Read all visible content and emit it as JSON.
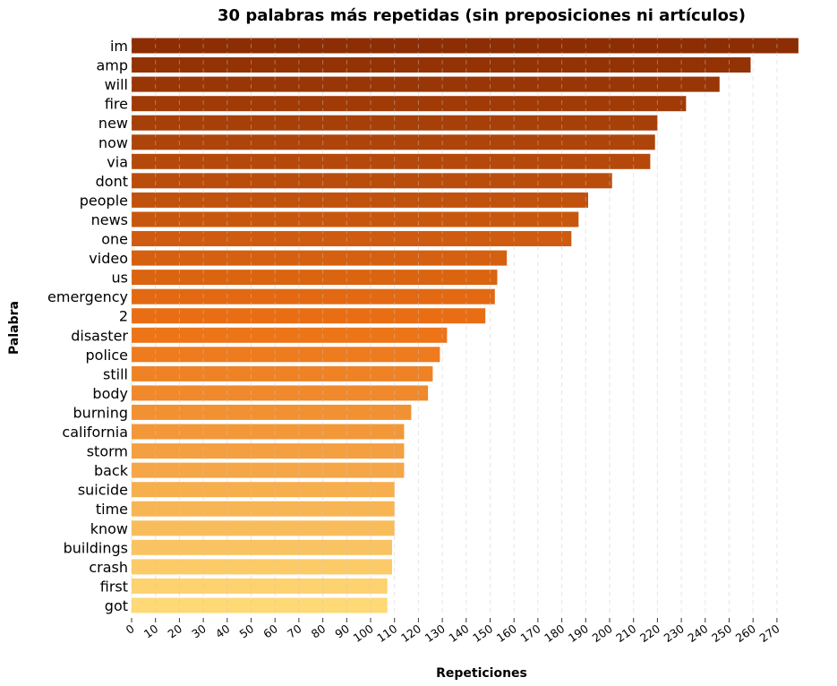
{
  "chart_data": {
    "type": "bar",
    "orientation": "horizontal",
    "title": "30 palabras más repetidas (sin preposiciones ni artículos)",
    "xlabel": "Repeticiones",
    "ylabel": "Palabra",
    "categories": [
      "im",
      "amp",
      "will",
      "fire",
      "new",
      "now",
      "via",
      "dont",
      "people",
      "news",
      "one",
      "video",
      "us",
      "emergency",
      "2",
      "disaster",
      "police",
      "still",
      "body",
      "burning",
      "california",
      "storm",
      "back",
      "suicide",
      "time",
      "know",
      "buildings",
      "crash",
      "first",
      "got"
    ],
    "values": [
      279,
      259,
      246,
      232,
      220,
      219,
      217,
      201,
      191,
      187,
      184,
      157,
      153,
      152,
      148,
      132,
      129,
      126,
      124,
      117,
      114,
      114,
      114,
      110,
      110,
      110,
      109,
      109,
      107,
      107
    ],
    "xlim": [
      0,
      280
    ],
    "xticks": [
      0,
      10,
      20,
      30,
      40,
      50,
      60,
      70,
      80,
      90,
      100,
      110,
      120,
      130,
      140,
      150,
      160,
      170,
      180,
      190,
      200,
      210,
      220,
      230,
      240,
      250,
      260,
      270
    ],
    "grid": "vertical dashed",
    "colormap": {
      "high": "#8c2d04",
      "mid": "#ec7014",
      "low": "#fed976"
    }
  }
}
